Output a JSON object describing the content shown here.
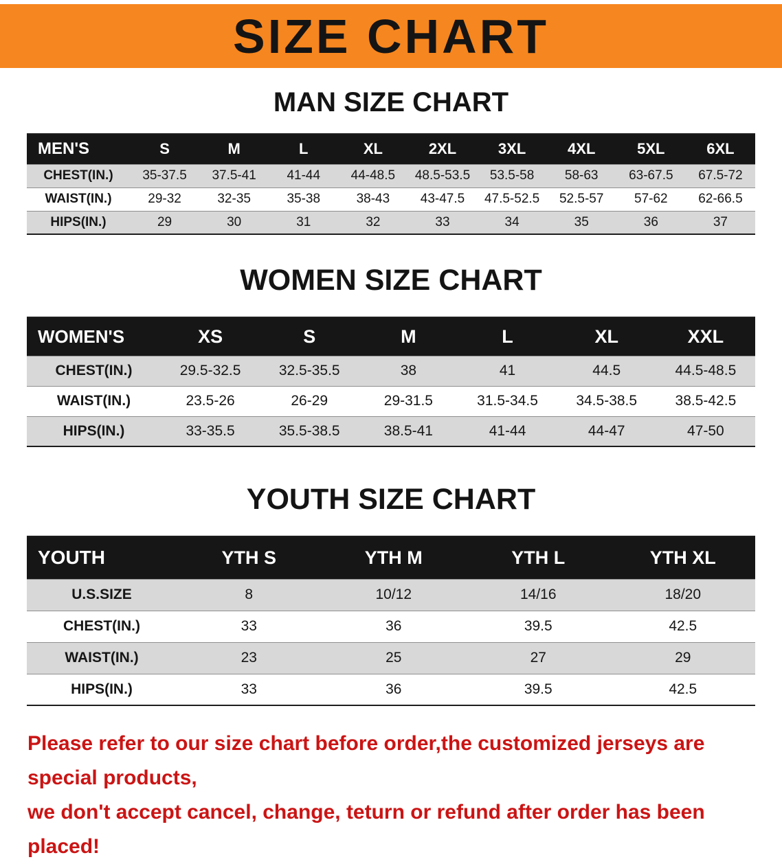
{
  "banner": {
    "title": "SIZE CHART"
  },
  "colors": {
    "banner_bg": "#f6861f",
    "header_bg": "#161616",
    "shaded_row": "#d8d8d8",
    "footer_red": "#cb1414"
  },
  "sections": [
    {
      "title": "MAN SIZE CHART",
      "header_label": "MEN'S",
      "columns": [
        "S",
        "M",
        "L",
        "XL",
        "2XL",
        "3XL",
        "4XL",
        "5XL",
        "6XL"
      ],
      "rows": [
        {
          "label": "CHEST(IN.)",
          "values": [
            "35-37.5",
            "37.5-41",
            "41-44",
            "44-48.5",
            "48.5-53.5",
            "53.5-58",
            "58-63",
            "63-67.5",
            "67.5-72"
          ]
        },
        {
          "label": "WAIST(IN.)",
          "values": [
            "29-32",
            "32-35",
            "35-38",
            "38-43",
            "43-47.5",
            "47.5-52.5",
            "52.5-57",
            "57-62",
            "62-66.5"
          ]
        },
        {
          "label": "HIPS(IN.)",
          "values": [
            "29",
            "30",
            "31",
            "32",
            "33",
            "34",
            "35",
            "36",
            "37"
          ]
        }
      ]
    },
    {
      "title": "WOMEN SIZE CHART",
      "header_label": "WOMEN'S",
      "columns": [
        "XS",
        "S",
        "M",
        "L",
        "XL",
        "XXL"
      ],
      "rows": [
        {
          "label": "CHEST(IN.)",
          "values": [
            "29.5-32.5",
            "32.5-35.5",
            "38",
            "41",
            "44.5",
            "44.5-48.5"
          ]
        },
        {
          "label": "WAIST(IN.)",
          "values": [
            "23.5-26",
            "26-29",
            "29-31.5",
            "31.5-34.5",
            "34.5-38.5",
            "38.5-42.5"
          ]
        },
        {
          "label": "HIPS(IN.)",
          "values": [
            "33-35.5",
            "35.5-38.5",
            "38.5-41",
            "41-44",
            "44-47",
            "47-50"
          ]
        }
      ]
    },
    {
      "title": "YOUTH SIZE CHART",
      "header_label": "YOUTH",
      "columns": [
        "YTH S",
        "YTH M",
        "YTH L",
        "YTH XL"
      ],
      "rows": [
        {
          "label": "U.S.SIZE",
          "values": [
            "8",
            "10/12",
            "14/16",
            "18/20"
          ]
        },
        {
          "label": "CHEST(IN.)",
          "values": [
            "33",
            "36",
            "39.5",
            "42.5"
          ]
        },
        {
          "label": "WAIST(IN.)",
          "values": [
            "23",
            "25",
            "27",
            "29"
          ]
        },
        {
          "label": "HIPS(IN.)",
          "values": [
            "33",
            "36",
            "39.5",
            "42.5"
          ]
        }
      ]
    }
  ],
  "footer": {
    "line1": "Please refer to our size chart before order,the customized jerseys are special products,",
    "line2": "we don't accept cancel, change, teturn or refund after order has been placed!"
  }
}
